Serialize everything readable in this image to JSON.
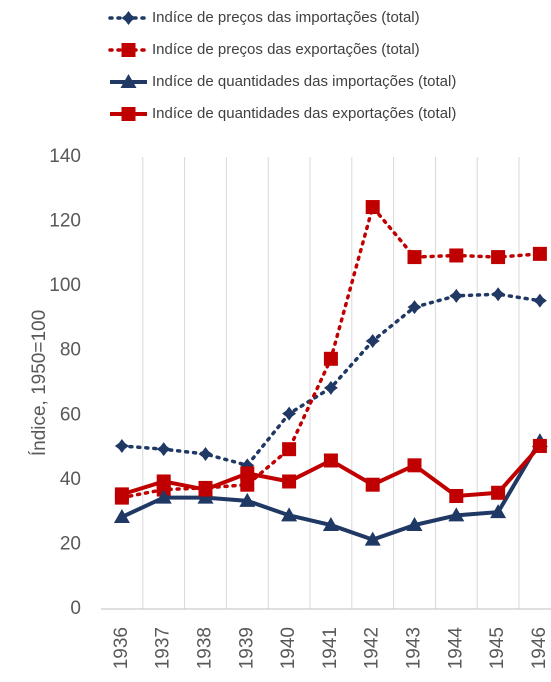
{
  "chart_data": {
    "type": "line",
    "categories": [
      "1936",
      "1937",
      "1938",
      "1939",
      "1940",
      "1941",
      "1942",
      "1943",
      "1944",
      "1945",
      "1946"
    ],
    "y_label": "Índice, 1950=100",
    "ylim": [
      0,
      140
    ],
    "yticks": [
      0,
      20,
      40,
      60,
      80,
      100,
      120,
      140
    ],
    "grid": true,
    "legend": "top",
    "series": [
      {
        "name": "Indíce de preços das importações (total)",
        "color": "#1f3864",
        "dash": "dotted",
        "marker": "diamond",
        "values": [
          50.5,
          49.5,
          48,
          44.5,
          60.5,
          68.5,
          83,
          93.5,
          97,
          97.5,
          95.5
        ]
      },
      {
        "name": "Indíce de preços das exportações (total)",
        "color": "#c00000",
        "dash": "dotted",
        "marker": "square",
        "values": [
          34.5,
          37,
          37.5,
          38.5,
          49.5,
          77.5,
          124.5,
          109,
          109.5,
          109,
          110
        ]
      },
      {
        "name": "Indíce de quantidades das importações (total)",
        "color": "#1f3864",
        "dash": "solid",
        "marker": "triangle",
        "values": [
          28.5,
          34.5,
          34.5,
          33.5,
          29,
          26,
          21.5,
          26,
          29,
          30,
          52
        ]
      },
      {
        "name": "Indíce de quantidades das exportações (total)",
        "color": "#c00000",
        "dash": "solid",
        "marker": "square",
        "values": [
          35.5,
          39.5,
          37,
          42,
          39.5,
          46,
          38.5,
          44.5,
          35,
          36,
          50.5
        ]
      }
    ]
  }
}
